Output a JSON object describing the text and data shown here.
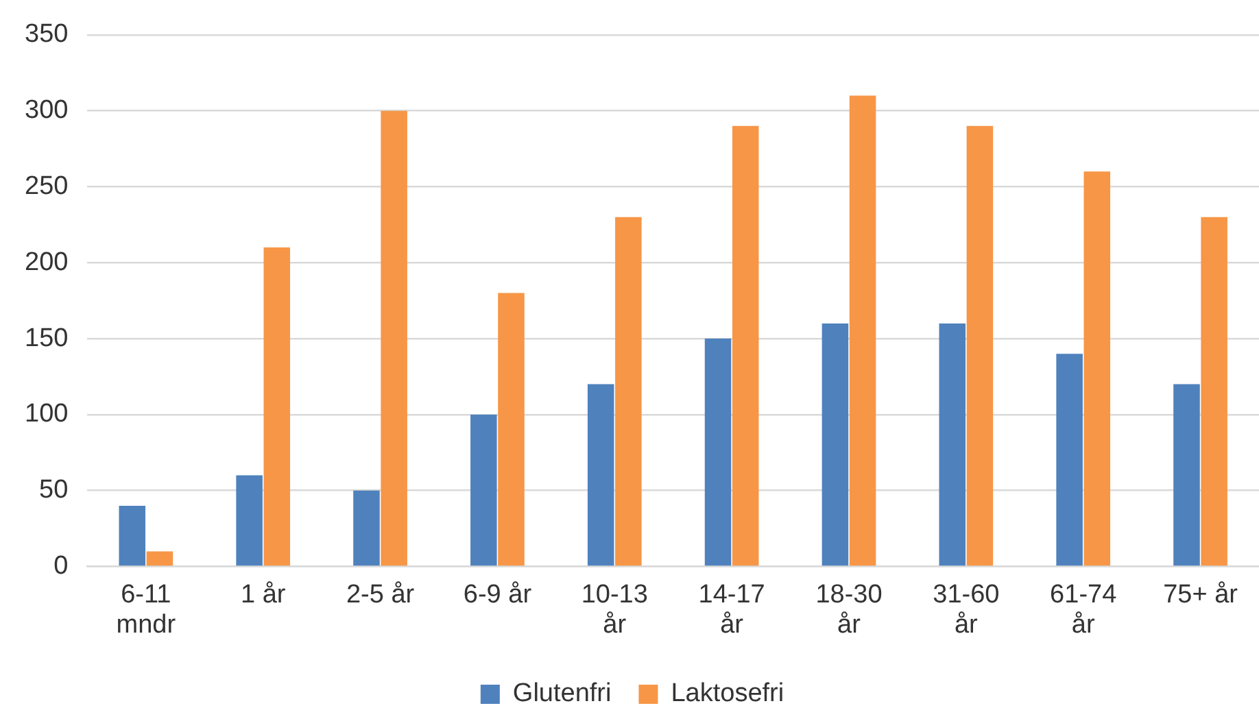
{
  "chart_data": {
    "type": "bar",
    "categories": [
      "6-11 mndr",
      "1 år",
      "2-5 år",
      "6-9 år",
      "10-13 år",
      "14-17 år",
      "18-30 år",
      "31-60 år",
      "61-74 år",
      "75+ år"
    ],
    "series": [
      {
        "name": "Glutenfri",
        "color": "#4f81bd",
        "values": [
          40,
          60,
          50,
          100,
          120,
          150,
          160,
          160,
          140,
          120
        ]
      },
      {
        "name": "Laktosefri",
        "color": "#f79646",
        "values": [
          10,
          210,
          300,
          180,
          230,
          290,
          310,
          290,
          260,
          230
        ]
      }
    ],
    "ylim": [
      0,
      350
    ],
    "yticks": [
      0,
      50,
      100,
      150,
      200,
      250,
      300,
      350
    ],
    "grid": "y",
    "legend": "bottom"
  }
}
